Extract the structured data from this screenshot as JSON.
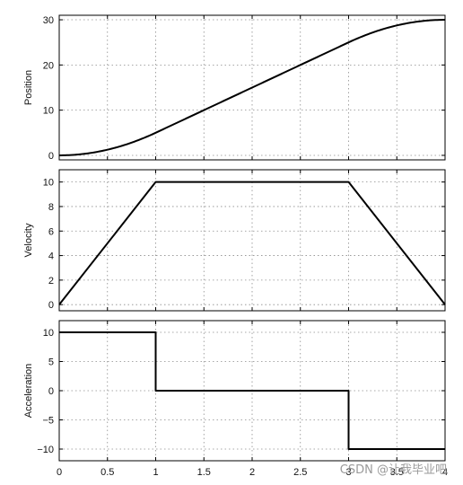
{
  "chart_data": [
    {
      "type": "line",
      "ylabel": "Position",
      "xlim": [
        0,
        4
      ],
      "ylim": [
        -1,
        31
      ],
      "xticks": [
        "0",
        "0.5",
        "1",
        "1.5",
        "2",
        "2.5",
        "3",
        "3.5",
        "4"
      ],
      "yticks": [
        0,
        10,
        20,
        30
      ],
      "grid": true,
      "series": [
        {
          "x": [
            0,
            0.25,
            0.5,
            0.75,
            1,
            1.5,
            2,
            2.5,
            3,
            3.25,
            3.5,
            3.75,
            4
          ],
          "y": [
            0,
            0.31,
            1.25,
            2.81,
            5,
            10,
            15,
            20,
            25,
            27.19,
            28.75,
            29.69,
            30
          ]
        }
      ]
    },
    {
      "type": "line",
      "ylabel": "Velocity",
      "xlim": [
        0,
        4
      ],
      "ylim": [
        -0.5,
        11
      ],
      "xticks": [
        "0",
        "0.5",
        "1",
        "1.5",
        "2",
        "2.5",
        "3",
        "3.5",
        "4"
      ],
      "yticks": [
        0,
        2,
        4,
        6,
        8,
        10
      ],
      "grid": true,
      "series": [
        {
          "x": [
            0,
            1,
            3,
            4
          ],
          "y": [
            0,
            10,
            10,
            0
          ]
        }
      ]
    },
    {
      "type": "line",
      "ylabel": "Acceleration",
      "xlabel": "",
      "xlim": [
        0,
        4
      ],
      "ylim": [
        -12,
        12
      ],
      "xticks": [
        "0",
        "0.5",
        "1",
        "1.5",
        "2",
        "2.5",
        "3",
        "3.5",
        "4"
      ],
      "yticks": [
        -10,
        -5,
        0,
        5,
        10
      ],
      "grid": true,
      "series": [
        {
          "x": [
            0,
            1,
            1,
            3,
            3,
            4
          ],
          "y": [
            10,
            10,
            0,
            0,
            -10,
            -10
          ]
        }
      ]
    }
  ],
  "watermark": "CSDN @让我毕业吧"
}
